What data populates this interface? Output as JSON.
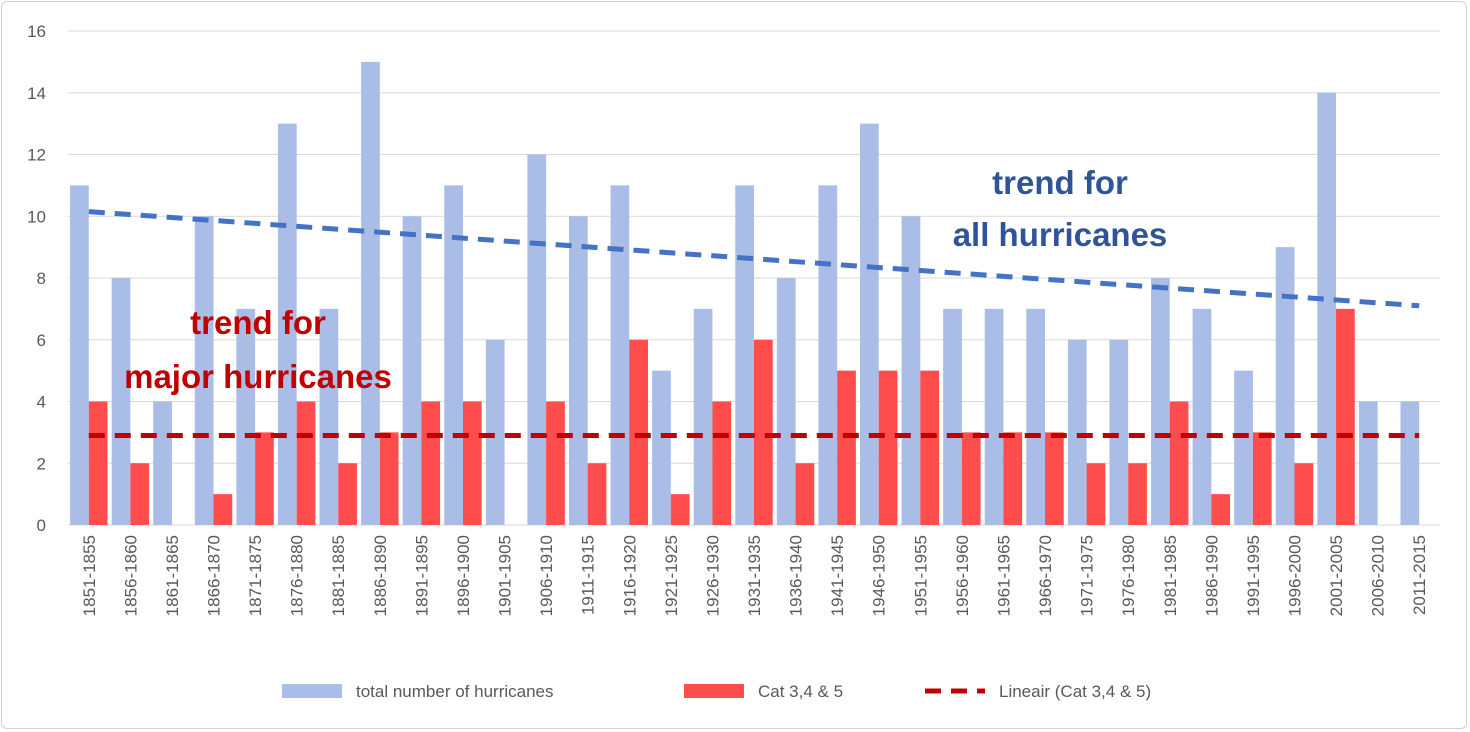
{
  "chart_data": {
    "type": "bar",
    "categories": [
      "1851-1855",
      "1856-1860",
      "1861-1865",
      "1866-1870",
      "1871-1875",
      "1876-1880",
      "1881-1885",
      "1886-1890",
      "1891-1895",
      "1896-1900",
      "1901-1905",
      "1906-1910",
      "1911-1915",
      "1916-1920",
      "1921-1925",
      "1926-1930",
      "1931-1935",
      "1936-1940",
      "1941-1945",
      "1946-1950",
      "1951-1955",
      "1956-1960",
      "1961-1965",
      "1966-1970",
      "1971-1975",
      "1976-1980",
      "1981-1985",
      "1986-1990",
      "1991-1995",
      "1996-2000",
      "2001-2005",
      "2006-2010",
      "2011-2015"
    ],
    "series": [
      {
        "name": "total number of hurricanes",
        "color": "#a9bde6",
        "values": [
          11,
          8,
          4,
          10,
          7,
          13,
          7,
          15,
          10,
          11,
          6,
          12,
          10,
          11,
          5,
          7,
          11,
          8,
          11,
          13,
          10,
          7,
          7,
          7,
          6,
          6,
          8,
          7,
          5,
          9,
          14,
          4,
          4
        ]
      },
      {
        "name": "Cat 3,4 & 5",
        "color": "#ff4d4d",
        "values": [
          4,
          2,
          0,
          1,
          3,
          4,
          2,
          3,
          4,
          4,
          0,
          4,
          2,
          6,
          1,
          4,
          6,
          2,
          5,
          5,
          5,
          3,
          3,
          3,
          2,
          2,
          4,
          1,
          3,
          2,
          7,
          0,
          0
        ]
      }
    ],
    "trendlines": [
      {
        "name": "Lineair (Cat 3,4 & 5)",
        "color": "#c00000",
        "start": 2.9,
        "end": 2.9,
        "in_legend": true
      },
      {
        "name": "",
        "color": "#4472c4",
        "start": 10.15,
        "end": 7.1,
        "in_legend": false
      }
    ],
    "ylim": [
      0,
      16
    ],
    "yticks": [
      0,
      2,
      4,
      6,
      8,
      10,
      12,
      14,
      16
    ],
    "grid": true,
    "legend_position": "bottom",
    "annotations": [
      {
        "lines": [
          "trend for",
          "all hurricanes"
        ],
        "color": "#2f5597"
      },
      {
        "lines": [
          "trend for",
          "major hurricanes"
        ],
        "color": "#c00000"
      }
    ]
  }
}
